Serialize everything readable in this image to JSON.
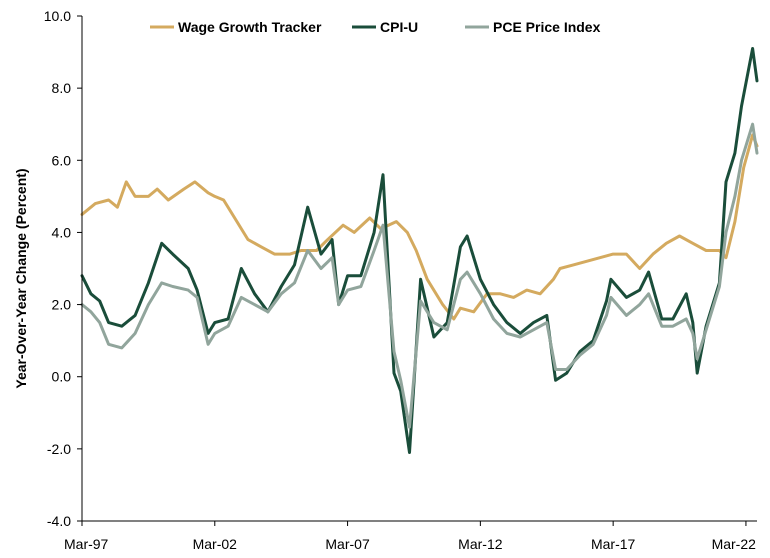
{
  "chart_data": {
    "type": "line",
    "ylabel": "Year-Over-Year Change (Percent)",
    "xlabel": "",
    "ylim": [
      -4.0,
      10.0
    ],
    "xlim": [
      "1997-03",
      "2022-08"
    ],
    "y_ticks": [
      "10.0",
      "8.0",
      "6.0",
      "4.0",
      "2.0",
      "0.0",
      "-2.0",
      "-4.0"
    ],
    "x_ticks": [
      "Mar-97",
      "Mar-02",
      "Mar-07",
      "Mar-12",
      "Mar-17",
      "Mar-22"
    ],
    "grid": false,
    "legend_position": "top",
    "series": [
      {
        "name": "Wage Growth Tracker",
        "color": "#d4aa5f",
        "points": [
          [
            "1997-03",
            4.5
          ],
          [
            "1997-09",
            4.8
          ],
          [
            "1998-03",
            4.9
          ],
          [
            "1998-07",
            4.7
          ],
          [
            "1998-11",
            5.4
          ],
          [
            "1999-03",
            5.0
          ],
          [
            "1999-09",
            5.0
          ],
          [
            "2000-01",
            5.2
          ],
          [
            "2000-06",
            4.9
          ],
          [
            "2001-01",
            5.2
          ],
          [
            "2001-06",
            5.4
          ],
          [
            "2001-12",
            5.1
          ],
          [
            "2002-03",
            5.0
          ],
          [
            "2002-07",
            4.9
          ],
          [
            "2002-12",
            4.4
          ],
          [
            "2003-06",
            3.8
          ],
          [
            "2003-12",
            3.6
          ],
          [
            "2004-06",
            3.4
          ],
          [
            "2005-01",
            3.4
          ],
          [
            "2005-06",
            3.5
          ],
          [
            "2006-01",
            3.5
          ],
          [
            "2006-06",
            3.8
          ],
          [
            "2007-01",
            4.2
          ],
          [
            "2007-06",
            4.0
          ],
          [
            "2008-01",
            4.4
          ],
          [
            "2008-06",
            4.1
          ],
          [
            "2009-01",
            4.3
          ],
          [
            "2009-06",
            4.0
          ],
          [
            "2009-10",
            3.5
          ],
          [
            "2010-03",
            2.7
          ],
          [
            "2010-10",
            2.0
          ],
          [
            "2011-03",
            1.6
          ],
          [
            "2011-06",
            1.9
          ],
          [
            "2011-12",
            1.8
          ],
          [
            "2012-06",
            2.3
          ],
          [
            "2012-12",
            2.3
          ],
          [
            "2013-06",
            2.2
          ],
          [
            "2013-12",
            2.4
          ],
          [
            "2014-06",
            2.3
          ],
          [
            "2014-12",
            2.7
          ],
          [
            "2015-03",
            3.0
          ],
          [
            "2015-09",
            3.1
          ],
          [
            "2016-03",
            3.2
          ],
          [
            "2016-09",
            3.3
          ],
          [
            "2017-03",
            3.4
          ],
          [
            "2017-09",
            3.4
          ],
          [
            "2018-03",
            3.0
          ],
          [
            "2018-09",
            3.4
          ],
          [
            "2019-03",
            3.7
          ],
          [
            "2019-09",
            3.9
          ],
          [
            "2020-03",
            3.7
          ],
          [
            "2020-09",
            3.5
          ],
          [
            "2021-03",
            3.5
          ],
          [
            "2021-06",
            3.3
          ],
          [
            "2021-10",
            4.3
          ],
          [
            "2022-02",
            5.8
          ],
          [
            "2022-06",
            6.7
          ],
          [
            "2022-08",
            6.4
          ]
        ]
      },
      {
        "name": "CPI-U",
        "color": "#1a4d3a",
        "points": [
          [
            "1997-03",
            2.8
          ],
          [
            "1997-07",
            2.3
          ],
          [
            "1997-11",
            2.1
          ],
          [
            "1998-03",
            1.5
          ],
          [
            "1998-09",
            1.4
          ],
          [
            "1999-03",
            1.7
          ],
          [
            "1999-09",
            2.6
          ],
          [
            "2000-03",
            3.7
          ],
          [
            "2000-08",
            3.4
          ],
          [
            "2001-03",
            3.0
          ],
          [
            "2001-07",
            2.4
          ],
          [
            "2001-12",
            1.2
          ],
          [
            "2002-03",
            1.5
          ],
          [
            "2002-09",
            1.6
          ],
          [
            "2003-03",
            3.0
          ],
          [
            "2003-09",
            2.3
          ],
          [
            "2004-03",
            1.8
          ],
          [
            "2004-09",
            2.5
          ],
          [
            "2005-03",
            3.1
          ],
          [
            "2005-09",
            4.7
          ],
          [
            "2006-03",
            3.4
          ],
          [
            "2006-08",
            3.8
          ],
          [
            "2006-11",
            2.0
          ],
          [
            "2007-03",
            2.8
          ],
          [
            "2007-09",
            2.8
          ],
          [
            "2008-03",
            4.0
          ],
          [
            "2008-07",
            5.6
          ],
          [
            "2008-12",
            0.1
          ],
          [
            "2009-03",
            -0.4
          ],
          [
            "2009-07",
            -2.1
          ],
          [
            "2009-12",
            2.7
          ],
          [
            "2010-06",
            1.1
          ],
          [
            "2010-12",
            1.5
          ],
          [
            "2011-06",
            3.6
          ],
          [
            "2011-09",
            3.9
          ],
          [
            "2012-03",
            2.7
          ],
          [
            "2012-09",
            2.0
          ],
          [
            "2013-03",
            1.5
          ],
          [
            "2013-09",
            1.2
          ],
          [
            "2014-03",
            1.5
          ],
          [
            "2014-09",
            1.7
          ],
          [
            "2015-01",
            -0.1
          ],
          [
            "2015-06",
            0.1
          ],
          [
            "2015-12",
            0.7
          ],
          [
            "2016-06",
            1.0
          ],
          [
            "2016-12",
            2.1
          ],
          [
            "2017-02",
            2.7
          ],
          [
            "2017-09",
            2.2
          ],
          [
            "2018-03",
            2.4
          ],
          [
            "2018-07",
            2.9
          ],
          [
            "2019-01",
            1.6
          ],
          [
            "2019-06",
            1.6
          ],
          [
            "2019-12",
            2.3
          ],
          [
            "2020-03",
            1.5
          ],
          [
            "2020-05",
            0.1
          ],
          [
            "2020-09",
            1.4
          ],
          [
            "2021-03",
            2.6
          ],
          [
            "2021-06",
            5.4
          ],
          [
            "2021-10",
            6.2
          ],
          [
            "2022-01",
            7.5
          ],
          [
            "2022-06",
            9.1
          ],
          [
            "2022-08",
            8.2
          ]
        ]
      },
      {
        "name": "PCE Price Index",
        "color": "#91a59c",
        "points": [
          [
            "1997-03",
            2.0
          ],
          [
            "1997-07",
            1.8
          ],
          [
            "1997-11",
            1.5
          ],
          [
            "1998-03",
            0.9
          ],
          [
            "1998-09",
            0.8
          ],
          [
            "1999-03",
            1.2
          ],
          [
            "1999-09",
            2.0
          ],
          [
            "2000-03",
            2.6
          ],
          [
            "2000-08",
            2.5
          ],
          [
            "2001-03",
            2.4
          ],
          [
            "2001-07",
            2.2
          ],
          [
            "2001-12",
            0.9
          ],
          [
            "2002-03",
            1.2
          ],
          [
            "2002-09",
            1.4
          ],
          [
            "2003-03",
            2.2
          ],
          [
            "2003-09",
            2.0
          ],
          [
            "2004-03",
            1.8
          ],
          [
            "2004-09",
            2.3
          ],
          [
            "2005-03",
            2.6
          ],
          [
            "2005-09",
            3.5
          ],
          [
            "2006-03",
            3.0
          ],
          [
            "2006-08",
            3.3
          ],
          [
            "2006-11",
            2.0
          ],
          [
            "2007-03",
            2.4
          ],
          [
            "2007-09",
            2.5
          ],
          [
            "2008-03",
            3.5
          ],
          [
            "2008-07",
            4.2
          ],
          [
            "2008-12",
            0.7
          ],
          [
            "2009-03",
            -0.1
          ],
          [
            "2009-07",
            -1.4
          ],
          [
            "2009-12",
            2.1
          ],
          [
            "2010-06",
            1.5
          ],
          [
            "2010-12",
            1.3
          ],
          [
            "2011-06",
            2.7
          ],
          [
            "2011-09",
            2.9
          ],
          [
            "2012-03",
            2.3
          ],
          [
            "2012-09",
            1.6
          ],
          [
            "2013-03",
            1.2
          ],
          [
            "2013-09",
            1.1
          ],
          [
            "2014-03",
            1.3
          ],
          [
            "2014-09",
            1.5
          ],
          [
            "2015-01",
            0.2
          ],
          [
            "2015-06",
            0.2
          ],
          [
            "2015-12",
            0.6
          ],
          [
            "2016-06",
            0.9
          ],
          [
            "2016-12",
            1.7
          ],
          [
            "2017-02",
            2.2
          ],
          [
            "2017-09",
            1.7
          ],
          [
            "2018-03",
            2.0
          ],
          [
            "2018-07",
            2.3
          ],
          [
            "2019-01",
            1.4
          ],
          [
            "2019-06",
            1.4
          ],
          [
            "2019-12",
            1.6
          ],
          [
            "2020-03",
            1.2
          ],
          [
            "2020-05",
            0.5
          ],
          [
            "2020-09",
            1.3
          ],
          [
            "2021-03",
            2.5
          ],
          [
            "2021-06",
            4.0
          ],
          [
            "2021-10",
            5.0
          ],
          [
            "2022-01",
            6.0
          ],
          [
            "2022-06",
            7.0
          ],
          [
            "2022-08",
            6.2
          ]
        ]
      }
    ]
  }
}
